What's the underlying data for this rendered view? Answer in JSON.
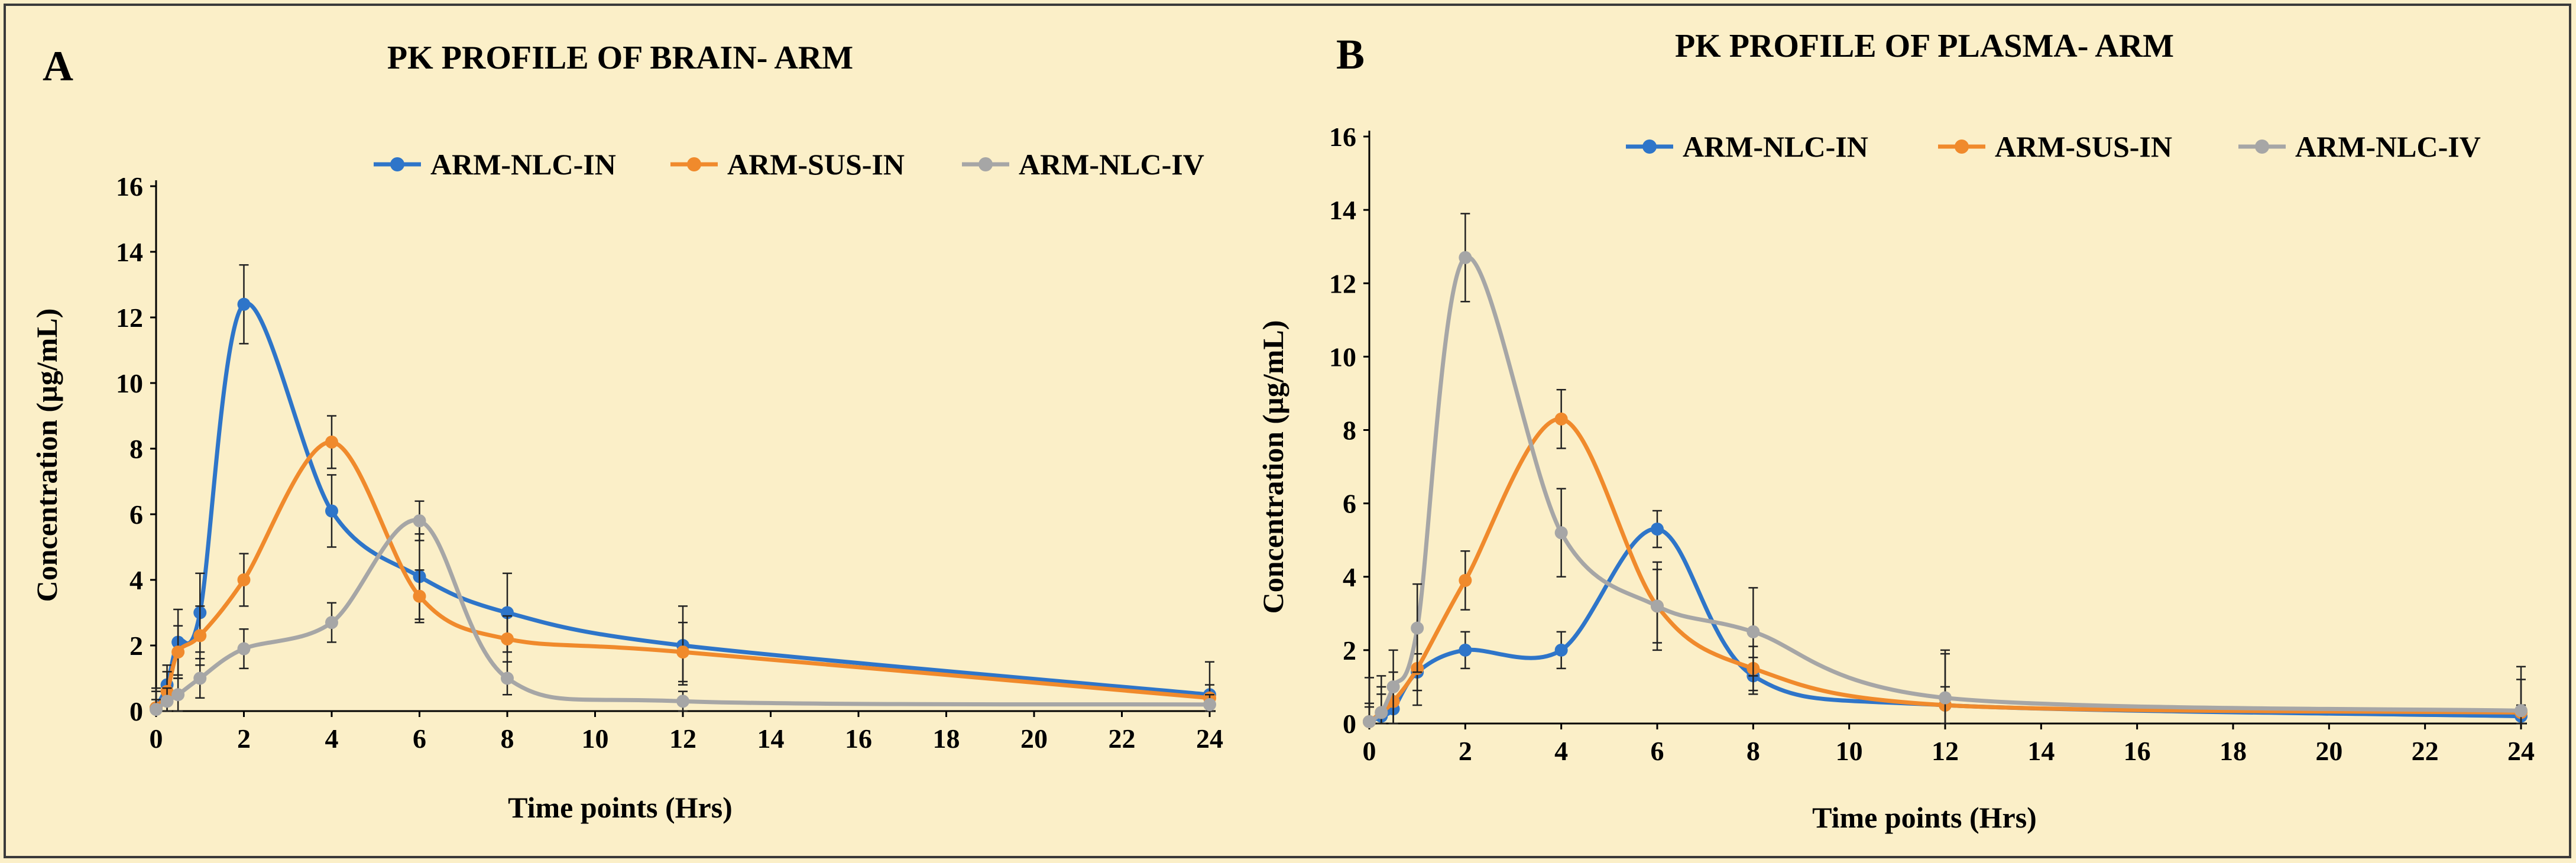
{
  "chart_data": [
    {
      "type": "line",
      "panel": "A",
      "title": "PK PROFILE OF BRAIN- ARM",
      "xlabel": "Time points (Hrs)",
      "ylabel": "Concentration (µg/mL)",
      "xlim": [
        0,
        24
      ],
      "ylim": [
        0,
        16
      ],
      "xticks": [
        0,
        2,
        4,
        6,
        8,
        10,
        12,
        14,
        16,
        18,
        20,
        22,
        24
      ],
      "yticks": [
        0,
        2,
        4,
        6,
        8,
        10,
        12,
        14,
        16
      ],
      "grid": false,
      "legend_position": "top",
      "x": [
        0,
        0.25,
        0.5,
        1,
        2,
        4,
        6,
        8,
        12,
        24
      ],
      "series": [
        {
          "name": "ARM-NLC-IN",
          "color": "#2e75c9",
          "values": [
            0.1,
            0.8,
            2.1,
            3.0,
            12.4,
            6.1,
            4.1,
            3.0,
            2.0,
            0.5
          ],
          "errors": [
            0.6,
            0.6,
            1.0,
            1.2,
            1.2,
            1.1,
            1.3,
            1.2,
            1.2,
            1.0
          ]
        },
        {
          "name": "ARM-SUS-IN",
          "color": "#f08a2c",
          "values": [
            0.1,
            0.6,
            1.8,
            2.3,
            4.0,
            8.2,
            3.5,
            2.2,
            1.8,
            0.4
          ],
          "errors": [
            0.5,
            0.6,
            0.8,
            0.9,
            0.8,
            0.8,
            0.8,
            0.7,
            0.9,
            0.4
          ]
        },
        {
          "name": "ARM-NLC-IV",
          "color": "#a6a6a6",
          "values": [
            0.05,
            0.3,
            0.5,
            1.0,
            1.9,
            2.7,
            5.8,
            1.0,
            0.3,
            0.2
          ],
          "errors": [
            0.3,
            0.4,
            0.5,
            0.6,
            0.6,
            0.6,
            0.6,
            0.5,
            0.3,
            0.3
          ]
        }
      ]
    },
    {
      "type": "line",
      "panel": "B",
      "title": "PK PROFILE OF PLASMA- ARM",
      "xlabel": "Time points (Hrs)",
      "ylabel": "Concentration (µg/mL)",
      "xlim": [
        0,
        24
      ],
      "ylim": [
        0,
        16
      ],
      "xticks": [
        0,
        2,
        4,
        6,
        8,
        10,
        12,
        14,
        16,
        18,
        20,
        22,
        24
      ],
      "yticks": [
        0,
        2,
        4,
        6,
        8,
        10,
        12,
        14,
        16
      ],
      "grid": false,
      "legend_position": "top",
      "x": [
        0,
        0.25,
        0.5,
        1,
        2,
        4,
        6,
        8,
        12,
        24
      ],
      "series": [
        {
          "name": "ARM-NLC-IN",
          "color": "#2e75c9",
          "values": [
            0.05,
            0.2,
            0.4,
            1.4,
            2.0,
            2.0,
            5.3,
            1.3,
            0.5,
            0.2
          ],
          "errors": [
            0.4,
            0.6,
            0.7,
            0.5,
            0.5,
            0.5,
            0.5,
            0.5,
            0.5,
            0.3
          ]
        },
        {
          "name": "ARM-SUS-IN",
          "color": "#f08a2c",
          "values": [
            0.05,
            0.3,
            0.6,
            1.5,
            3.9,
            8.3,
            3.2,
            1.5,
            0.5,
            0.3
          ],
          "errors": [
            0.5,
            0.7,
            0.8,
            1.0,
            0.8,
            0.8,
            1.0,
            0.6,
            1.5,
            0.9
          ]
        },
        {
          "name": "ARM-NLC-IV",
          "color": "#a6a6a6",
          "values": [
            0.05,
            0.3,
            1.0,
            2.6,
            12.7,
            5.2,
            3.2,
            2.5,
            0.7,
            0.35
          ],
          "errors": [
            1.2,
            1.0,
            1.0,
            1.2,
            1.2,
            1.2,
            1.2,
            1.2,
            1.2,
            1.2
          ]
        }
      ]
    }
  ]
}
